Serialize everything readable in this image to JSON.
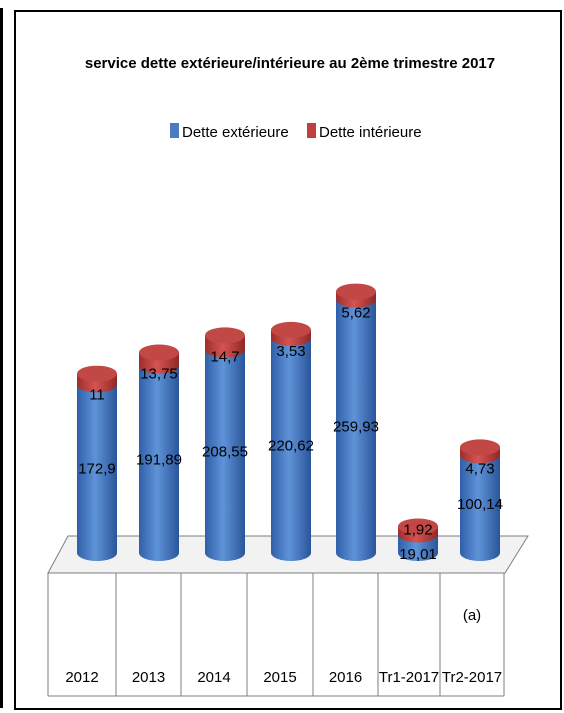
{
  "chart_data": {
    "type": "bar",
    "stacked": true,
    "title": "service dette extérieure/intérieure au 2ème trimestre 2017",
    "categories": [
      "2012",
      "2013",
      "2014",
      "2015",
      "2016",
      "Tr1-2017",
      "Tr2-2017"
    ],
    "category_notes": [
      "",
      "",
      "",
      "",
      "",
      "",
      "(a)"
    ],
    "series": [
      {
        "name": "Dette extérieure",
        "values": [
          172.9,
          191.89,
          208.55,
          220.62,
          259.93,
          19.01,
          100.14
        ],
        "labels": [
          "172,9",
          "191,89",
          "208,55",
          "220,62",
          "259,93",
          "19,01",
          "100,14"
        ],
        "color": "#4a7cc4"
      },
      {
        "name": "Dette intérieure",
        "values": [
          11,
          13.75,
          14.7,
          3.53,
          5.62,
          1.92,
          4.73
        ],
        "labels": [
          "11",
          "13,75",
          "14,7",
          "3,53",
          "5,62",
          "1,92",
          "4,73"
        ],
        "color": "#c0403f"
      }
    ],
    "legend_position": "top",
    "grid": false
  }
}
